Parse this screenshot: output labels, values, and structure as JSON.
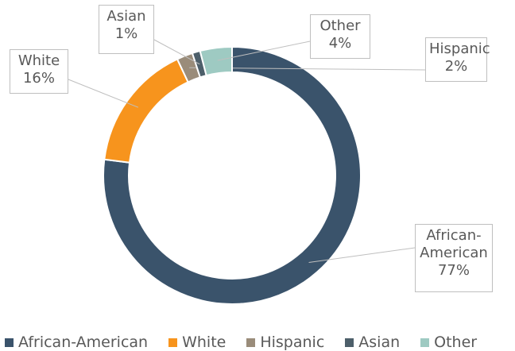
{
  "chart_data": {
    "type": "donut",
    "categories": [
      "African-American",
      "White",
      "Hispanic",
      "Asian",
      "Other"
    ],
    "values": [
      77,
      16,
      2,
      1,
      4
    ],
    "value_labels": [
      "77%",
      "16%",
      "2%",
      "1%",
      "4%"
    ],
    "colors": [
      "#3a536b",
      "#f7941d",
      "#9a8c7a",
      "#4d5f6a",
      "#9ecac2"
    ],
    "legend": "bottom"
  }
}
